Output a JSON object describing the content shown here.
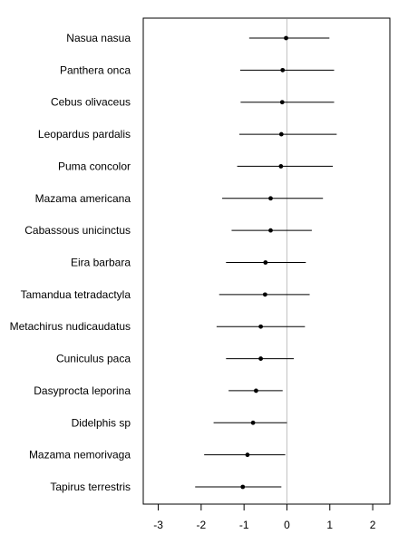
{
  "chart_data": {
    "type": "forest",
    "title": "",
    "xlabel": "",
    "ylabel": "",
    "xlim": [
      -3.35,
      2.4
    ],
    "x_ticks": [
      "-3",
      "-2",
      "-1",
      "0",
      "1",
      "2"
    ],
    "x_tick_values": [
      -3,
      -2,
      -1,
      0,
      1,
      2
    ],
    "reference_line": 0,
    "grid": false,
    "colors": {
      "points": "#000000",
      "intervals": "#000000",
      "reference": "#c8c8c8",
      "frame": "#000000"
    },
    "categories": [
      "Nasua nasua",
      "Panthera onca",
      "Cebus olivaceus",
      "Leopardus pardalis",
      "Puma concolor",
      "Mazama americana",
      "Cabassous unicinctus",
      "Eira barbara",
      "Tamandua tetradactyla",
      "Metachirus nudicaudatus",
      "Cuniculus paca",
      "Dasyprocta leporina",
      "Didelphis sp",
      "Mazama nemorivaga",
      "Tapirus terrestris"
    ],
    "estimates": [
      -0.02,
      -0.1,
      -0.11,
      -0.13,
      -0.14,
      -0.38,
      -0.38,
      -0.5,
      -0.51,
      -0.61,
      -0.61,
      -0.72,
      -0.79,
      -0.92,
      -1.03
    ],
    "lower": [
      -0.88,
      -1.09,
      -1.08,
      -1.11,
      -1.16,
      -1.51,
      -1.29,
      -1.42,
      -1.58,
      -1.64,
      -1.42,
      -1.36,
      -1.71,
      -1.93,
      -2.14
    ],
    "upper": [
      0.99,
      1.1,
      1.1,
      1.16,
      1.07,
      0.84,
      0.58,
      0.44,
      0.53,
      0.42,
      0.16,
      -0.1,
      0.0,
      -0.04,
      -0.13
    ]
  }
}
